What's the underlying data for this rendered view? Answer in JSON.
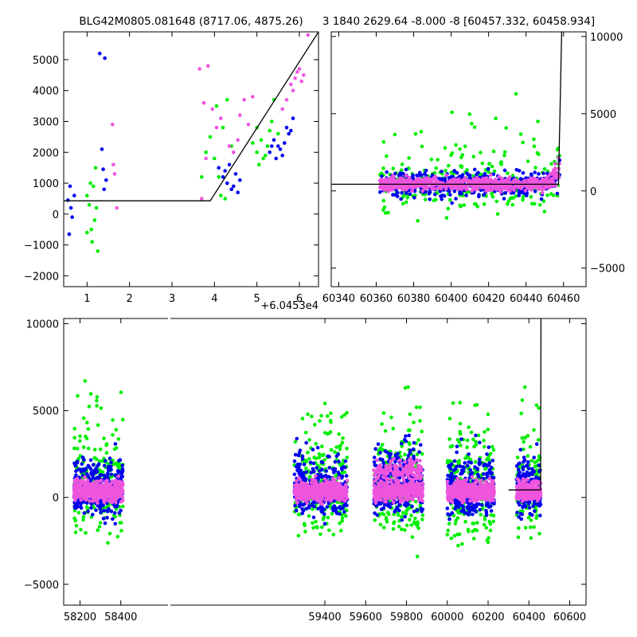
{
  "chart_data": [
    {
      "type": "scatter",
      "title": "BLG42M0805.081648 (8717.06, 4875.26)",
      "x_offset_label": "+6.0453e4",
      "xlim": [
        0.45,
        6.45
      ],
      "ylim": [
        -2350,
        5900
      ],
      "x_ticks": [
        "1",
        "2",
        "3",
        "4",
        "5",
        "6"
      ],
      "y_ticks": [
        "−2000",
        "−1000",
        "0",
        "1000",
        "2000",
        "3000",
        "4000",
        "5000"
      ],
      "model_line": [
        [
          0.45,
          430
        ],
        [
          3.9,
          430
        ],
        [
          6.45,
          5900
        ]
      ],
      "series": [
        {
          "color": "#0000ee",
          "points": [
            [
              0.55,
              450
            ],
            [
              0.6,
              900
            ],
            [
              0.62,
              200
            ],
            [
              0.65,
              -100
            ],
            [
              0.7,
              600
            ],
            [
              0.58,
              -650
            ],
            [
              1.3,
              5200
            ],
            [
              1.42,
              5050
            ],
            [
              1.35,
              2100
            ],
            [
              1.38,
              1450
            ],
            [
              1.45,
              1100
            ],
            [
              1.4,
              800
            ],
            [
              4.1,
              1500
            ],
            [
              4.2,
              1200
            ],
            [
              4.3,
              1000
            ],
            [
              4.4,
              800
            ],
            [
              4.5,
              1300
            ],
            [
              4.6,
              1100
            ],
            [
              4.35,
              1600
            ],
            [
              4.45,
              900
            ],
            [
              4.55,
              700
            ],
            [
              4.25,
              1400
            ],
            [
              5.3,
              2000
            ],
            [
              5.4,
              2400
            ],
            [
              5.5,
              2200
            ],
            [
              5.6,
              1900
            ],
            [
              5.7,
              2800
            ],
            [
              5.8,
              2700
            ],
            [
              5.45,
              1800
            ],
            [
              5.55,
              2100
            ],
            [
              5.65,
              2300
            ],
            [
              5.75,
              2600
            ],
            [
              5.35,
              2200
            ],
            [
              5.85,
              3100
            ]
          ]
        },
        {
          "color": "#00ee00",
          "points": [
            [
              1.0,
              600
            ],
            [
              1.05,
              300
            ],
            [
              1.1,
              -500
            ],
            [
              1.15,
              900
            ],
            [
              1.2,
              1500
            ],
            [
              1.25,
              -1200
            ],
            [
              1.0,
              -600
            ],
            [
              1.08,
              1000
            ],
            [
              1.18,
              -200
            ],
            [
              1.22,
              200
            ],
            [
              1.12,
              -900
            ],
            [
              3.7,
              1200
            ],
            [
              3.8,
              2000
            ],
            [
              3.9,
              2500
            ],
            [
              4.0,
              1800
            ],
            [
              4.1,
              1200
            ],
            [
              4.2,
              2800
            ],
            [
              4.3,
              3700
            ],
            [
              4.4,
              2200
            ],
            [
              4.05,
              3500
            ],
            [
              4.15,
              600
            ],
            [
              4.25,
              500
            ],
            [
              5.0,
              2000
            ],
            [
              5.1,
              2400
            ],
            [
              5.2,
              1900
            ],
            [
              5.3,
              2700
            ],
            [
              5.4,
              3700
            ],
            [
              5.5,
              2600
            ],
            [
              5.05,
              1600
            ],
            [
              5.15,
              1800
            ],
            [
              5.25,
              2200
            ],
            [
              5.35,
              3000
            ],
            [
              4.9,
              2300
            ],
            [
              5.0,
              2800
            ]
          ]
        },
        {
          "color": "#ee55dd",
          "points": [
            [
              1.6,
              2900
            ],
            [
              1.65,
              1300
            ],
            [
              1.7,
              200
            ],
            [
              1.62,
              1600
            ],
            [
              3.65,
              4700
            ],
            [
              3.75,
              3600
            ],
            [
              3.85,
              4800
            ],
            [
              3.95,
              3400
            ],
            [
              4.05,
              2800
            ],
            [
              4.15,
              3100
            ],
            [
              4.35,
              2200
            ],
            [
              4.45,
              2000
            ],
            [
              4.55,
              2400
            ],
            [
              4.6,
              3200
            ],
            [
              4.7,
              3700
            ],
            [
              4.8,
              2900
            ],
            [
              4.9,
              3800
            ],
            [
              5.6,
              3400
            ],
            [
              5.7,
              3700
            ],
            [
              5.8,
              4200
            ],
            [
              5.9,
              4400
            ],
            [
              6.0,
              4700
            ],
            [
              6.1,
              4500
            ],
            [
              6.2,
              5800
            ],
            [
              5.85,
              4000
            ],
            [
              5.95,
              4600
            ],
            [
              6.05,
              4300
            ],
            [
              3.7,
              500
            ],
            [
              3.8,
              1800
            ]
          ]
        }
      ]
    },
    {
      "type": "scatter",
      "title": "3 1840 2629.64 -8.000 -8 [60457.332, 60458.934]",
      "xlim": [
        60336,
        60472
      ],
      "ylim": [
        -6200,
        10300
      ],
      "x_ticks": [
        "60340",
        "60360",
        "60380",
        "60400",
        "60420",
        "60440",
        "60460"
      ],
      "y_ticks": [
        "−5000",
        "0",
        "5000",
        "10000"
      ],
      "y_axis_side": "right",
      "model_line": [
        [
          60336,
          430
        ],
        [
          60457.3,
          430
        ],
        [
          60459,
          10300
        ]
      ]
    },
    {
      "type": "scatter",
      "xlim": [
        58120,
        60680
      ],
      "ylim": [
        -6200,
        10300
      ],
      "x_ticks": [
        "58200",
        "58400",
        "59400",
        "59600",
        "59800",
        "60000",
        "60200",
        "60400",
        "60600"
      ],
      "y_ticks": [
        "−5000",
        "0",
        "5000",
        "10000"
      ],
      "x_axis_breaks": [
        "58420-59260"
      ],
      "model_line": [
        [
          60300,
          430
        ],
        [
          60457.3,
          430
        ],
        [
          60459,
          10300
        ]
      ],
      "seasons": [
        [
          58170,
          58410
        ],
        [
          59250,
          59510
        ],
        [
          59640,
          59880
        ],
        [
          60000,
          60230
        ],
        [
          60340,
          60458
        ]
      ]
    }
  ],
  "colors": {
    "blue": "#0000ee",
    "green": "#00ee00",
    "pink": "#ee55dd",
    "axes": "#000000"
  }
}
